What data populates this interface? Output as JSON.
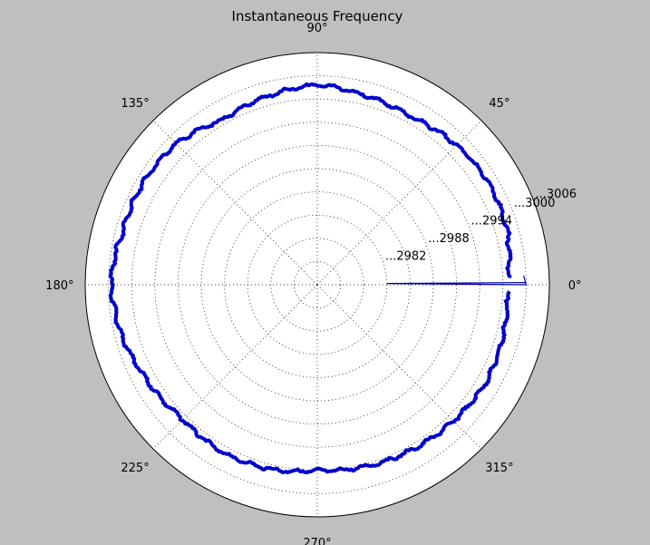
{
  "chart_data": {
    "type": "line",
    "projection": "polar",
    "title": "Instantaneous Frequency",
    "xlabel": "",
    "ylabel": "",
    "theta_unit": "degrees",
    "theta_ticks": [
      "0°",
      "45°",
      "90°",
      "135°",
      "180°",
      "225°",
      "270°",
      "315°"
    ],
    "theta_tick_values": [
      0,
      45,
      90,
      135,
      180,
      225,
      270,
      315
    ],
    "r_tick_labels": [
      "...2982",
      "...2988",
      "...2994",
      "...3000",
      "...3006"
    ],
    "rlim_note": "radial axis range shown only via truncated tick labels",
    "grid": true,
    "legend": "none",
    "series": [
      {
        "color": "#0000cc",
        "style": "thick line with markers",
        "mean_radius_fraction": 0.84,
        "values_description_points": [
          {
            "theta": 0,
            "r": 0.82
          },
          {
            "theta": 15,
            "r": 0.85
          },
          {
            "theta": 30,
            "r": 0.86
          },
          {
            "theta": 45,
            "r": 0.85
          },
          {
            "theta": 60,
            "r": 0.83
          },
          {
            "theta": 75,
            "r": 0.84
          },
          {
            "theta": 90,
            "r": 0.86
          },
          {
            "theta": 105,
            "r": 0.84
          },
          {
            "theta": 120,
            "r": 0.82
          },
          {
            "theta": 135,
            "r": 0.86
          },
          {
            "theta": 150,
            "r": 0.87
          },
          {
            "theta": 165,
            "r": 0.87
          },
          {
            "theta": 180,
            "r": 0.89
          },
          {
            "theta": 195,
            "r": 0.87
          },
          {
            "theta": 210,
            "r": 0.84
          },
          {
            "theta": 225,
            "r": 0.82
          },
          {
            "theta": 240,
            "r": 0.83
          },
          {
            "theta": 255,
            "r": 0.82
          },
          {
            "theta": 270,
            "r": 0.8
          },
          {
            "theta": 285,
            "r": 0.81
          },
          {
            "theta": 300,
            "r": 0.82
          },
          {
            "theta": 315,
            "r": 0.83
          },
          {
            "theta": 330,
            "r": 0.84
          },
          {
            "theta": 345,
            "r": 0.83
          }
        ]
      },
      {
        "color": "#0000aa",
        "style": "thin line",
        "note": "wraparound segment near 0°",
        "points": [
          {
            "theta": 2.5,
            "r": 0.89
          },
          {
            "theta": 0,
            "r": 0.9
          },
          {
            "theta": 1.0,
            "r": 0.3
          }
        ]
      }
    ]
  }
}
